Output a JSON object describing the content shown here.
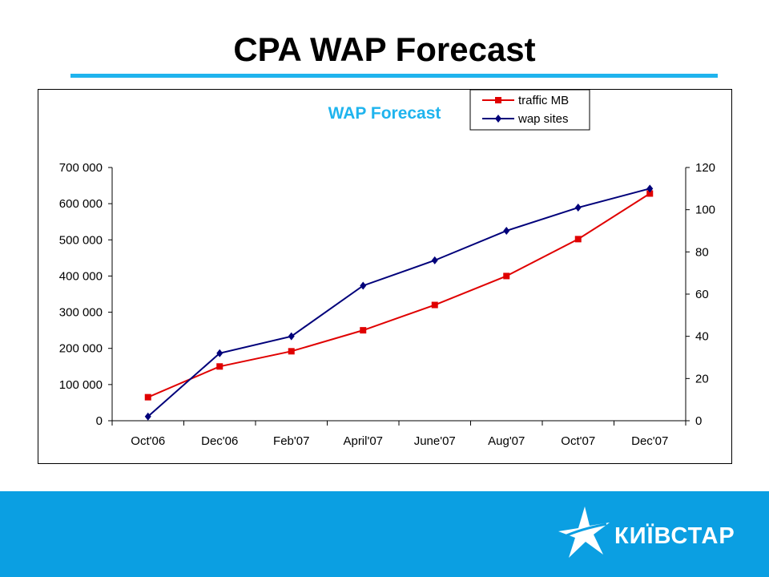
{
  "slide": {
    "title": "CPA WAP Forecast",
    "accent_color": "#1fb4ee",
    "footer_color": "#0b9fe2"
  },
  "logo": {
    "text": "КИЇВСТАР",
    "icon": "star-icon"
  },
  "chart_data": {
    "type": "line",
    "title": "WAP Forecast",
    "title_color": "#1fb4ee",
    "categories": [
      "Oct'06",
      "Dec'06",
      "Feb'07",
      "April'07",
      "June'07",
      "Aug'07",
      "Oct'07",
      "Dec'07"
    ],
    "series": [
      {
        "name": "traffic MB",
        "axis": "left",
        "color": "#e00000",
        "marker": "square",
        "values": [
          65000,
          150000,
          192000,
          250000,
          320000,
          400000,
          502000,
          628000
        ]
      },
      {
        "name": "wap sites",
        "axis": "right",
        "color": "#00007a",
        "marker": "diamond",
        "values": [
          2,
          32,
          40,
          64,
          76,
          90,
          101,
          110
        ]
      }
    ],
    "y_left": {
      "min": 0,
      "max": 700000,
      "step": 100000,
      "tick_labels": [
        "0",
        "100 000",
        "200 000",
        "300 000",
        "400 000",
        "500 000",
        "600 000",
        "700 000"
      ]
    },
    "y_right": {
      "min": 0,
      "max": 120,
      "step": 20,
      "tick_labels": [
        "0",
        "20",
        "40",
        "60",
        "80",
        "100",
        "120"
      ]
    },
    "grid": false,
    "legend": "top-right"
  }
}
